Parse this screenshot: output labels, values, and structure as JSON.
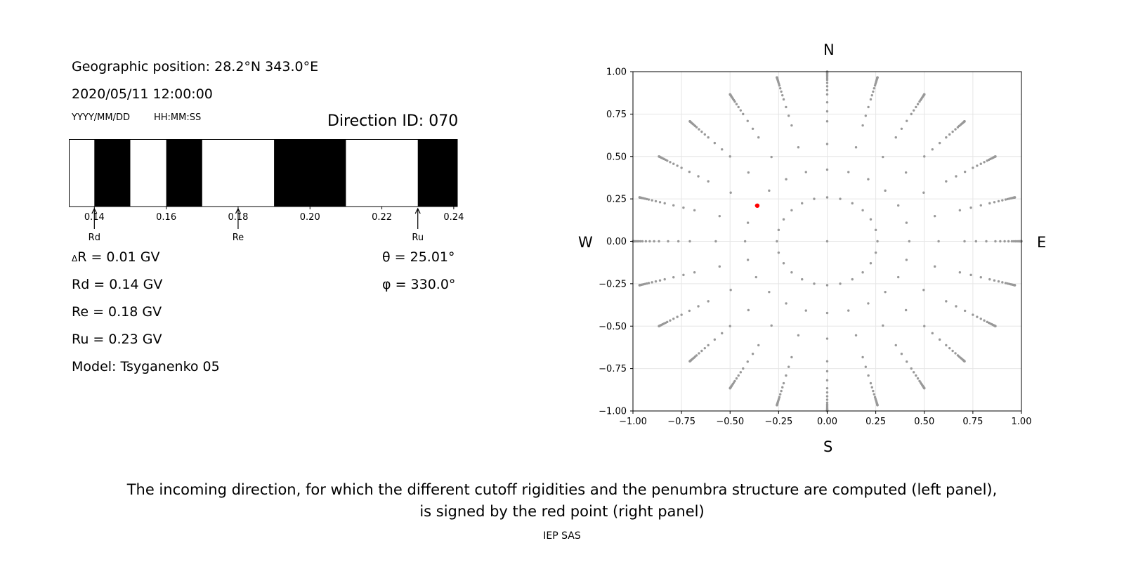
{
  "info": {
    "position": "Geographic position: 28.2°N 343.0°E",
    "datetime": "2020/05/11 12:00:00",
    "date_format": "YYYY/MM/DD",
    "time_format": "HH:MM:SS",
    "direction": "Direction ID: 070"
  },
  "values": {
    "delta_r": "R = 0.01 GV",
    "delta_symbol": "Δ",
    "rd": "Rd = 0.14 GV",
    "re": "Re = 0.18 GV",
    "ru": "Ru = 0.23 GV",
    "model": "Model: Tsyganenko 05",
    "theta": "θ = 25.01°",
    "phi": "φ = 330.0°"
  },
  "compass": {
    "north": "N",
    "south": "S",
    "west": "W",
    "east": "E"
  },
  "caption": {
    "line1": "The incoming direction, for which the different cutoff rigidities and the penumbra structure are computed (left panel),",
    "line2": "is signed by the red point (right panel)",
    "credit": "IEP SAS"
  },
  "colors": {
    "point": "#999999",
    "highlight": "#ff0000",
    "band": "#000000"
  },
  "chart_data": [
    {
      "type": "penumbra_band",
      "xlim": [
        0.133,
        0.241
      ],
      "ticks": [
        0.14,
        0.16,
        0.18,
        0.2,
        0.22,
        0.24
      ],
      "tick_labels": [
        "0.14",
        "0.16",
        "0.18",
        "0.20",
        "0.22",
        "0.24"
      ],
      "forbidden_intervals": [
        [
          0.14,
          0.15
        ],
        [
          0.16,
          0.17
        ],
        [
          0.19,
          0.21
        ],
        [
          0.23,
          0.241
        ]
      ],
      "markers": [
        {
          "label": "Rd",
          "value": 0.14
        },
        {
          "label": "Re",
          "value": 0.18
        },
        {
          "label": "Ru",
          "value": 0.23
        }
      ]
    },
    {
      "type": "scatter",
      "xlim": [
        -1.0,
        1.0
      ],
      "ylim": [
        -1.0,
        1.0
      ],
      "ticks": [
        -1.0,
        -0.75,
        -0.5,
        -0.25,
        0.0,
        0.25,
        0.5,
        0.75,
        1.0
      ],
      "tick_labels": [
        "−1.00",
        "−0.75",
        "−0.50",
        "−0.25",
        "0.00",
        "0.25",
        "0.50",
        "0.75",
        "1.00"
      ],
      "grid": true,
      "directions": {
        "azimuth_step_deg": 15,
        "zenith_rings_deg": [
          0,
          15,
          25,
          35,
          45,
          50,
          55,
          60,
          63,
          66,
          69,
          72,
          74,
          76,
          78,
          80,
          82,
          84,
          85,
          86,
          87,
          88,
          89,
          90
        ],
        "radius_formula": "sin(zenith)"
      },
      "highlight": {
        "x": -0.36,
        "y": 0.21
      }
    }
  ]
}
